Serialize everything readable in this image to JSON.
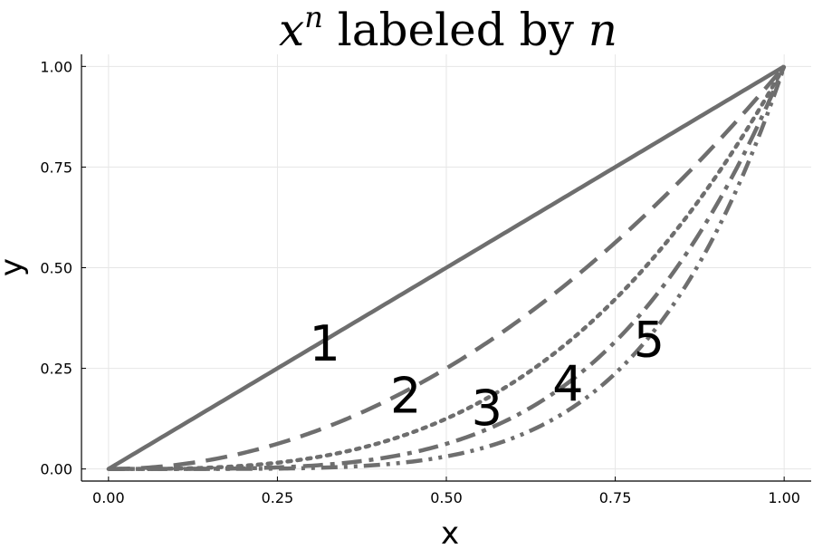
{
  "chart_data": {
    "type": "line",
    "title": {
      "base": "x",
      "exponent": "n",
      "text": " labeled by ",
      "var": "n"
    },
    "xlabel": "x",
    "ylabel": "y",
    "xlim": [
      -0.04,
      1.04
    ],
    "ylim": [
      -0.03,
      1.03
    ],
    "grid": true,
    "legend": "none",
    "line_color": "#6e6e6e",
    "x_ticks": [
      0,
      0.25,
      0.5,
      0.75,
      1
    ],
    "x_tick_labels": [
      "0.00",
      "0.25",
      "0.50",
      "0.75",
      "1.00"
    ],
    "y_ticks": [
      0,
      0.25,
      0.5,
      0.75,
      1
    ],
    "y_tick_labels": [
      "0.00",
      "0.25",
      "0.50",
      "0.75",
      "1.00"
    ],
    "series": [
      {
        "exponent": 1,
        "style": "solid",
        "label": "1",
        "label_at": [
          0.32,
          0.31
        ]
      },
      {
        "exponent": 2,
        "style": "dash",
        "label": "2",
        "label_at": [
          0.44,
          0.18
        ]
      },
      {
        "exponent": 3,
        "style": "dot",
        "label": "3",
        "label_at": [
          0.56,
          0.15
        ]
      },
      {
        "exponent": 4,
        "style": "dashdot",
        "label": "4",
        "label_at": [
          0.68,
          0.21
        ]
      },
      {
        "exponent": 5,
        "style": "dashdotdot",
        "label": "5",
        "label_at": [
          0.8,
          0.32
        ]
      }
    ]
  }
}
